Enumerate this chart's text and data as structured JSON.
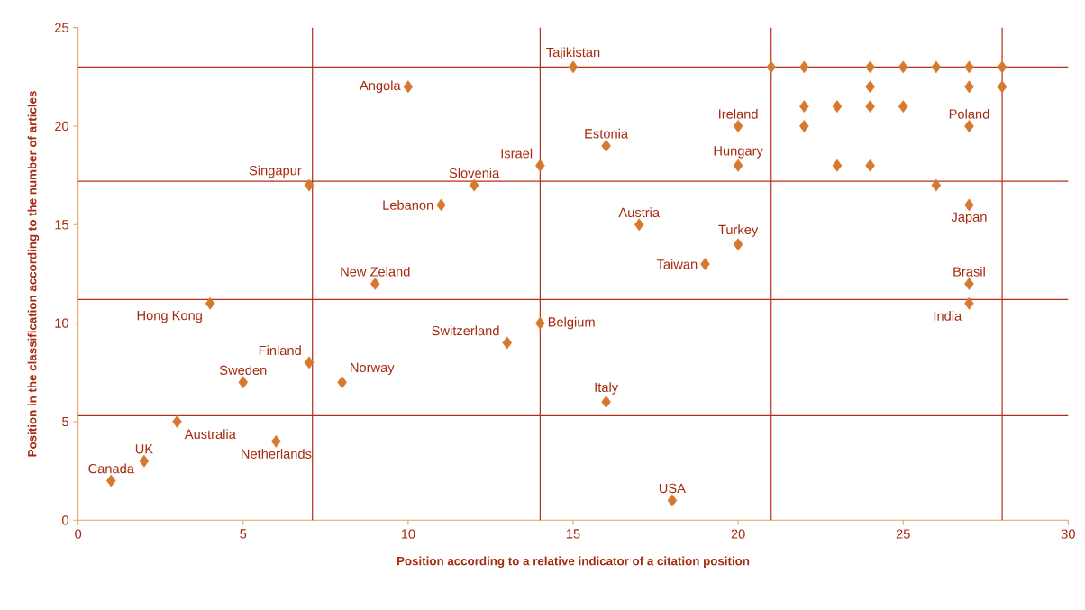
{
  "chart_data": {
    "type": "scatter",
    "xlabel": "Position according to a relative indicator of a citation position",
    "ylabel": "Position in the classification according to the number of articles",
    "xlim": [
      0,
      30
    ],
    "ylim": [
      0,
      25
    ],
    "xticks": [
      0,
      5,
      10,
      15,
      20,
      25,
      30
    ],
    "yticks": [
      0,
      5,
      10,
      15,
      20,
      25
    ],
    "grid": false,
    "marker": "diamond",
    "series": [
      {
        "color": "#d7782f",
        "x": [
          1,
          2,
          3,
          6,
          5,
          4,
          7,
          8,
          7,
          9,
          10,
          11,
          12,
          13,
          14,
          14,
          15,
          16,
          16,
          17,
          18,
          19,
          20,
          20,
          20,
          21,
          22,
          24,
          25,
          26,
          27,
          28,
          22,
          23,
          24,
          24,
          25,
          22,
          23,
          24,
          26,
          27,
          27,
          27,
          27,
          27,
          28
        ],
        "values": [
          2,
          3,
          5,
          4,
          7,
          11,
          8,
          7,
          17,
          12,
          22,
          16,
          17,
          9,
          18,
          10,
          23,
          19,
          6,
          15,
          1,
          13,
          20,
          18,
          14,
          23,
          23,
          23,
          23,
          23,
          23,
          23,
          21,
          21,
          22,
          21,
          21,
          20,
          18,
          18,
          17,
          22,
          20,
          16,
          12,
          11,
          22
        ]
      }
    ],
    "ref_lines": [
      {
        "axis": "x",
        "value": 7.1,
        "color": "#b5301a"
      },
      {
        "axis": "x",
        "value": 14,
        "color": "#b5301a"
      },
      {
        "axis": "x",
        "value": 21,
        "color": "#b5301a"
      },
      {
        "axis": "x",
        "value": 28,
        "color": "#b5301a"
      },
      {
        "axis": "y",
        "value": 23,
        "color": "#b5301a"
      },
      {
        "axis": "y",
        "value": 17.2,
        "color": "#b5301a"
      },
      {
        "axis": "y",
        "value": 11.2,
        "color": "#b5301a"
      },
      {
        "axis": "y",
        "value": 5.3,
        "color": "#b5301a"
      }
    ],
    "annotations": [
      {
        "text": "Canada",
        "x": 1,
        "y": 2
      },
      {
        "text": "UK",
        "x": 2,
        "y": 3
      },
      {
        "text": "Australia",
        "x": 3,
        "y": 5
      },
      {
        "text": "Netherlands",
        "x": 6,
        "y": 4
      },
      {
        "text": "Sweden",
        "x": 5,
        "y": 7
      },
      {
        "text": "Hong Kong",
        "x": 4,
        "y": 11
      },
      {
        "text": "Finland",
        "x": 7,
        "y": 8
      },
      {
        "text": "Norway",
        "x": 8,
        "y": 7
      },
      {
        "text": "Singapur",
        "x": 7,
        "y": 17
      },
      {
        "text": "New Zeland",
        "x": 9,
        "y": 12
      },
      {
        "text": "Angola",
        "x": 10,
        "y": 22
      },
      {
        "text": "Lebanon",
        "x": 11,
        "y": 16
      },
      {
        "text": "Slovenia",
        "x": 12,
        "y": 17
      },
      {
        "text": "Switzerland",
        "x": 13,
        "y": 9
      },
      {
        "text": "Israel",
        "x": 14,
        "y": 18
      },
      {
        "text": "Belgium",
        "x": 14,
        "y": 10
      },
      {
        "text": "Tajikistan",
        "x": 15,
        "y": 23
      },
      {
        "text": "Estonia",
        "x": 16,
        "y": 19
      },
      {
        "text": "Italy",
        "x": 16,
        "y": 6
      },
      {
        "text": "Austria",
        "x": 17,
        "y": 15
      },
      {
        "text": "USA",
        "x": 18,
        "y": 1
      },
      {
        "text": "Taiwan",
        "x": 19,
        "y": 13
      },
      {
        "text": "Ireland",
        "x": 20,
        "y": 20
      },
      {
        "text": "Hungary",
        "x": 20,
        "y": 18
      },
      {
        "text": "Turkey",
        "x": 20,
        "y": 14
      },
      {
        "text": "Poland",
        "x": 27,
        "y": 20
      },
      {
        "text": "Japan",
        "x": 27,
        "y": 16
      },
      {
        "text": "Brasil",
        "x": 27,
        "y": 12
      },
      {
        "text": "India",
        "x": 27,
        "y": 11
      }
    ]
  }
}
